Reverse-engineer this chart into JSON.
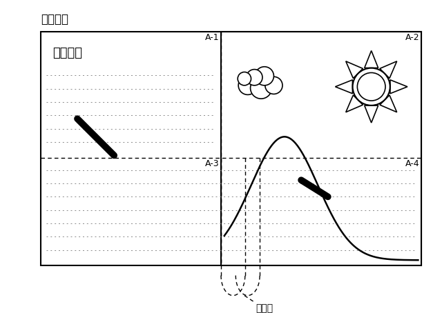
{
  "title": "印刷画像",
  "title_fontsize": 12,
  "label_A1": "A-1",
  "label_A2": "A-2",
  "label_A3": "A-3",
  "label_A4": "A-4",
  "text_title": "登山日記",
  "annotation": "分割線",
  "bg_color": "#ffffff"
}
